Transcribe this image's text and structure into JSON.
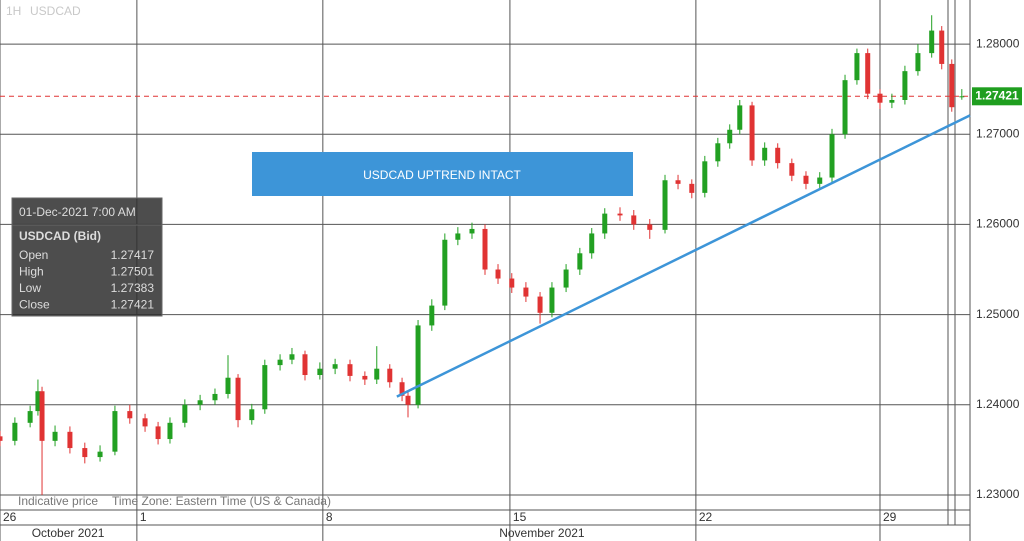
{
  "chart_data": {
    "type": "candlestick",
    "header": {
      "interval": "1H",
      "symbol": "USDCAD"
    },
    "annotation": "USDCAD UPTREND INTACT",
    "x": [
      0.0,
      0.4,
      0.81,
      1.02,
      1.13,
      1.48,
      1.88,
      2.28,
      2.69,
      3.09,
      3.49,
      3.9,
      4.25,
      4.57,
      4.97,
      5.38,
      5.78,
      6.13,
      6.4,
      6.77,
      7.12,
      7.53,
      7.85,
      8.2,
      8.6,
      9.01,
      9.41,
      9.81,
      10.13,
      10.48,
      10.81,
      10.97,
      11.24,
      11.61,
      11.96,
      12.31,
      12.69,
      13.04,
      13.39,
      13.76,
      14.14,
      14.52,
      14.84,
      15.22,
      15.59,
      15.91,
      16.26,
      16.67,
      17.04,
      17.47,
      17.88,
      18.23,
      18.6,
      18.95,
      19.3,
      19.62,
      19.89,
      20.22,
      20.56,
      20.91,
      21.29,
      21.67,
      22.04,
      22.37,
      22.72,
      23.04,
      23.33,
      23.66,
      23.98,
      24.33,
      24.68,
      25.05,
      25.32,
      25.59,
      25.86
    ],
    "open": [
      1.2365,
      1.236,
      1.238,
      1.2393,
      1.2415,
      1.236,
      1.237,
      1.2352,
      1.2342,
      1.2348,
      1.2393,
      1.2385,
      1.2376,
      1.2362,
      1.238,
      1.24,
      1.2405,
      1.2412,
      1.243,
      1.2383,
      1.2395,
      1.2444,
      1.245,
      1.2456,
      1.2433,
      1.244,
      1.2445,
      1.2432,
      1.2428,
      1.244,
      1.2425,
      1.241,
      1.24,
      1.2488,
      1.251,
      1.2583,
      1.259,
      1.2595,
      1.255,
      1.254,
      1.253,
      1.252,
      1.2502,
      1.253,
      1.255,
      1.2568,
      1.259,
      1.2612,
      1.261,
      1.26,
      1.2594,
      1.2649,
      1.2645,
      1.2635,
      1.267,
      1.269,
      1.2705,
      1.2732,
      1.2671,
      1.2685,
      1.2668,
      1.2654,
      1.2645,
      1.2652,
      1.27,
      1.276,
      1.279,
      1.2745,
      1.2735,
      1.2738,
      1.277,
      1.279,
      1.2815,
      1.2778,
      1.27417
    ],
    "high": [
      1.2371,
      1.2386,
      1.2399,
      1.2428,
      1.242,
      1.2377,
      1.2376,
      1.2358,
      1.2355,
      1.2399,
      1.24,
      1.239,
      1.2381,
      1.2386,
      1.2406,
      1.2411,
      1.2418,
      1.2455,
      1.2434,
      1.2401,
      1.245,
      1.2456,
      1.2463,
      1.246,
      1.2447,
      1.2451,
      1.245,
      1.2437,
      1.2465,
      1.2445,
      1.243,
      1.2415,
      1.2494,
      1.2517,
      1.259,
      1.2597,
      1.2602,
      1.26,
      1.2556,
      1.2546,
      1.2536,
      1.2525,
      1.2536,
      1.2556,
      1.2574,
      1.2596,
      1.2618,
      1.2619,
      1.2616,
      1.2606,
      1.2655,
      1.2655,
      1.265,
      1.2676,
      1.2696,
      1.2711,
      1.2738,
      1.2736,
      1.2691,
      1.269,
      1.2673,
      1.2659,
      1.2658,
      1.2706,
      1.2766,
      1.2795,
      1.2795,
      1.275,
      1.2745,
      1.2776,
      1.28,
      1.2832,
      1.282,
      1.2783,
      1.27501
    ],
    "low": [
      1.2354,
      1.2355,
      1.2375,
      1.2388,
      1.23,
      1.2354,
      1.2346,
      1.2335,
      1.2337,
      1.2344,
      1.2379,
      1.237,
      1.2356,
      1.2357,
      1.2375,
      1.2394,
      1.24,
      1.2407,
      1.2375,
      1.2378,
      1.239,
      1.2438,
      1.2445,
      1.2427,
      1.2428,
      1.2434,
      1.2426,
      1.2422,
      1.2423,
      1.2419,
      1.2404,
      1.2386,
      1.2396,
      1.2482,
      1.2505,
      1.2577,
      1.2584,
      1.2544,
      1.2534,
      1.2524,
      1.2514,
      1.249,
      1.2497,
      1.2525,
      1.2544,
      1.2562,
      1.2584,
      1.2604,
      1.2594,
      1.2584,
      1.259,
      1.2639,
      1.2629,
      1.263,
      1.2664,
      1.2684,
      1.27,
      1.2665,
      1.2665,
      1.2662,
      1.2648,
      1.2639,
      1.264,
      1.2647,
      1.2695,
      1.2755,
      1.2739,
      1.2728,
      1.2729,
      1.2733,
      1.2765,
      1.2785,
      1.2772,
      1.2725,
      1.27383
    ],
    "close": [
      1.236,
      1.238,
      1.2393,
      1.2415,
      1.236,
      1.237,
      1.2352,
      1.2342,
      1.2348,
      1.2393,
      1.2385,
      1.2376,
      1.2362,
      1.238,
      1.24,
      1.2405,
      1.2412,
      1.243,
      1.2383,
      1.2395,
      1.2444,
      1.245,
      1.2456,
      1.2433,
      1.244,
      1.2445,
      1.2432,
      1.2428,
      1.244,
      1.2425,
      1.241,
      1.24,
      1.2488,
      1.251,
      1.2583,
      1.259,
      1.2595,
      1.255,
      1.254,
      1.253,
      1.252,
      1.2502,
      1.253,
      1.255,
      1.2568,
      1.259,
      1.2612,
      1.261,
      1.26,
      1.2594,
      1.2649,
      1.2645,
      1.2635,
      1.267,
      1.269,
      1.2705,
      1.2732,
      1.2671,
      1.2685,
      1.2668,
      1.2654,
      1.2645,
      1.2652,
      1.27,
      1.276,
      1.279,
      1.2745,
      1.2735,
      1.2738,
      1.277,
      1.279,
      1.2815,
      1.2778,
      1.273,
      1.27421
    ],
    "up_color": "#22a022",
    "down_color": "#e03333",
    "xlim": [
      0,
      26.08
    ],
    "ylim": [
      1.22833,
      1.28489
    ],
    "yticks": [
      {
        "value": 1.23,
        "label": "1.23000"
      },
      {
        "value": 1.24,
        "label": "1.24000"
      },
      {
        "value": 1.25,
        "label": "1.25000"
      },
      {
        "value": 1.26,
        "label": "1.26000"
      },
      {
        "value": 1.27,
        "label": "1.27000"
      },
      {
        "value": 1.28,
        "label": "1.28000"
      }
    ],
    "xticks": [
      {
        "value": 0,
        "label": "26"
      },
      {
        "value": 3.68,
        "label": "1"
      },
      {
        "value": 8.68,
        "label": "8"
      },
      {
        "value": 13.71,
        "label": "15"
      },
      {
        "value": 18.71,
        "label": "22"
      },
      {
        "value": 23.66,
        "label": "29"
      }
    ],
    "month_ticks": [
      {
        "value": 1.83,
        "label": "October 2021"
      },
      {
        "value": 14.57,
        "label": "November 2021"
      }
    ],
    "trendline": {
      "x": [
        10.67,
        26.08
      ],
      "y": [
        1.2409,
        1.2721
      ],
      "color": "#3d95d8"
    },
    "last_price": {
      "value": 1.27421,
      "color": "#e03333",
      "label_color": "#1f9e1f"
    },
    "tooltip": {
      "time": "01-Dec-2021 7:00 AM",
      "instrument": "USDCAD (Bid)",
      "rows": [
        {
          "label": "Open",
          "value": 1.27417
        },
        {
          "label": "High",
          "value": 1.27501
        },
        {
          "label": "Low",
          "value": 1.27383
        },
        {
          "label": "Close",
          "value": 1.27421
        }
      ]
    },
    "footer": [
      "Indicative price",
      "Time Zone: Eastern Time (US & Canada)"
    ],
    "grid": true
  }
}
